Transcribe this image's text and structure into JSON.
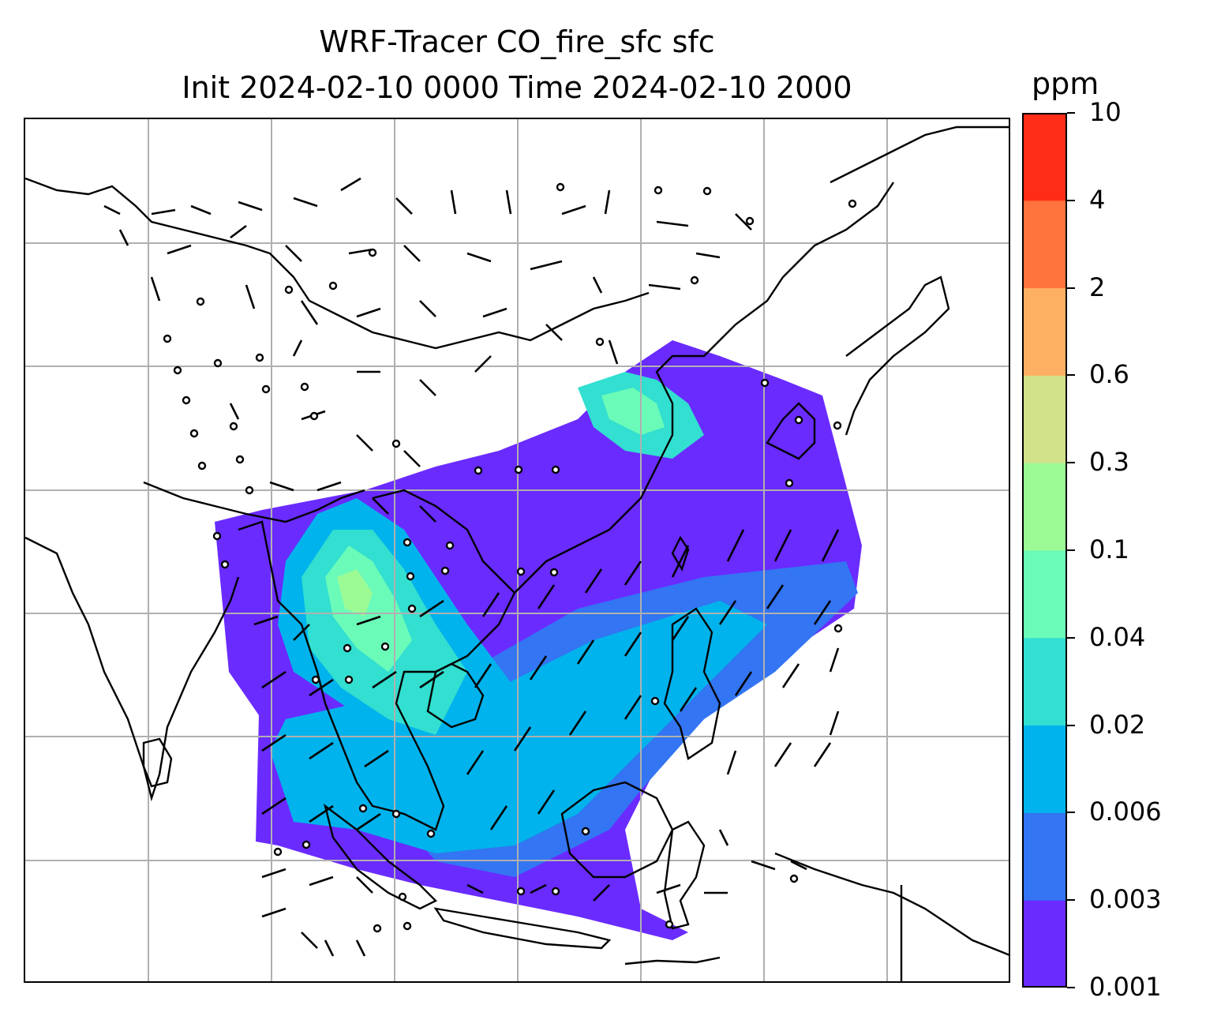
{
  "title": {
    "line1": "WRF-Tracer CO_fire_sfc sfc",
    "line2": "Init 2024-02-10 0000 Time 2024-02-10 2000"
  },
  "colorbar": {
    "units": "ppm",
    "levels": [
      "0.001",
      "0.003",
      "0.006",
      "0.02",
      "0.04",
      "0.1",
      "0.3",
      "0.6",
      "2",
      "4",
      "10"
    ],
    "colors": [
      "#6a2bff",
      "#3375f2",
      "#00b3ec",
      "#32dfd0",
      "#6bfbb9",
      "#9cfa95",
      "#d0e18a",
      "#feb062",
      "#ff733d",
      "#ff2c17"
    ]
  },
  "map": {
    "background": "#ffffff",
    "coastline_color": "#000000",
    "gridline_color": "#b0b0b0"
  }
}
